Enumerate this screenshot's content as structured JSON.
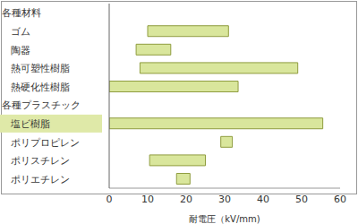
{
  "chart_data": {
    "type": "bar",
    "orientation": "horizontal",
    "x_label": "耐電圧（kV/mm)",
    "categories": [
      "各種材料",
      "ゴム",
      "陶器",
      "熱可塑性樹脂",
      "熱硬化性樹脂",
      "各種プラスチック",
      "塩ビ樹脂",
      "ポリプロピレン",
      "ポリスチレン",
      "ポリエチレン"
    ],
    "values": [
      null,
      [
        10,
        31
      ],
      [
        7,
        16
      ],
      [
        8,
        49
      ],
      [
        0,
        33.5
      ],
      null,
      [
        0,
        55.5
      ],
      [
        29,
        32
      ],
      [
        10.5,
        25
      ],
      [
        17.5,
        21
      ]
    ],
    "color": "#d9e69c",
    "xlim": [
      0,
      60
    ],
    "xticks": [
      0,
      10,
      20,
      30,
      40,
      50,
      60
    ],
    "grid": false
  }
}
